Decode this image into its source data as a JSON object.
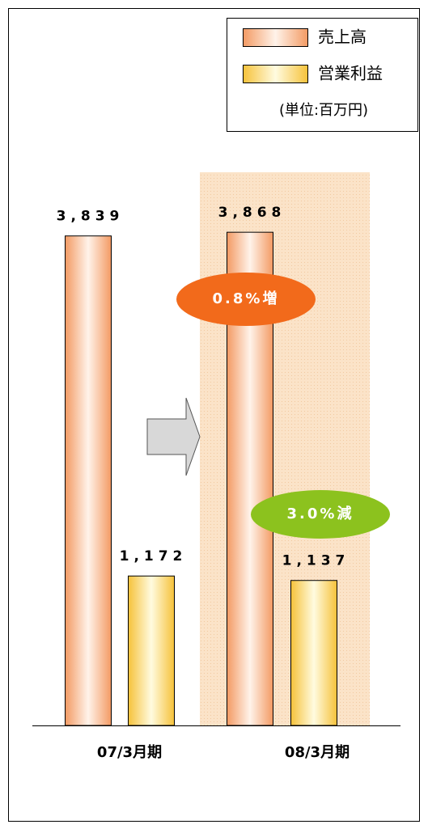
{
  "chart_data": {
    "type": "bar",
    "categories": [
      "07/3月期",
      "08/3月期"
    ],
    "series": [
      {
        "name": "売上高",
        "color": "#f39a63",
        "values": [
          3839,
          3868
        ],
        "value_labels": [
          "3,839",
          "3,868"
        ]
      },
      {
        "name": "営業利益",
        "color": "#f6c23a",
        "values": [
          1172,
          1137
        ],
        "value_labels": [
          "1,172",
          "1,137"
        ]
      }
    ],
    "unit_note": "(単位:百万円)",
    "annotations": [
      {
        "text": "0.8%増",
        "color": "#f26a1b"
      },
      {
        "text": "3.0%減",
        "color": "#8cc21e"
      }
    ]
  }
}
